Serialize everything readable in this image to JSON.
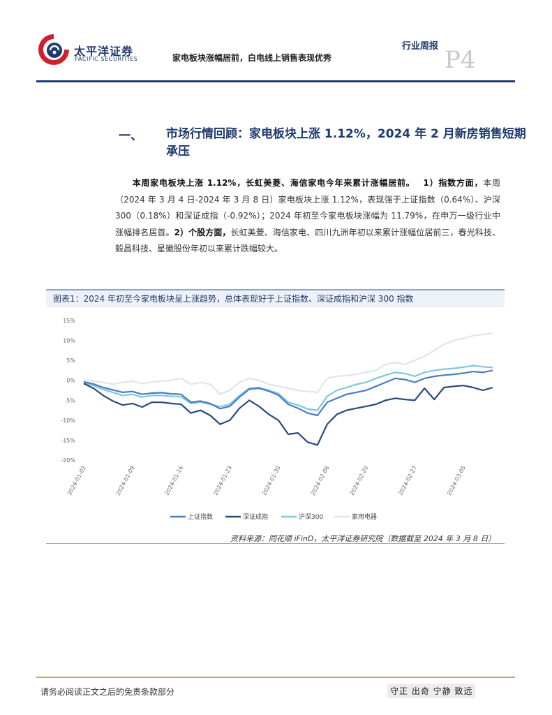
{
  "header": {
    "logo_cn": "太平洋证券",
    "logo_en": "PACIFIC SECURITIES",
    "subtitle": "家电板块涨幅居前，白电线上销售表现优秀",
    "report_type": "行业周报",
    "page_number": "P4"
  },
  "section": {
    "number": "一、",
    "title": "市场行情回顾：家电板块上涨 1.12%，2024 年 2 月新房销售短期承压"
  },
  "body": {
    "lead": "本周家电板块上涨 1.12%，长虹美菱、海信家电今年来累计涨幅居前。",
    "point1_label": "1）指数方面，",
    "point1_text": "本周（2024 年 3 月 4 日-2024 年 3 月 8 日）家电板块上涨 1.12%，表现强于上证指数（0.64%）、沪深 300（0.18%）和深证成指（-0.92%）；2024 年初至今家电板块涨幅为 11.79%，在申万一级行业中涨幅排名居首。",
    "point2_label": "2）个股方面，",
    "point2_text": "长虹美菱、海信家电、四川九洲年初以来累计涨幅位居前三，春光科技、毅昌科技、星徽股份年初以来累计跌幅较大。"
  },
  "figure": {
    "title": "图表1：2024 年初至今家电板块呈上涨趋势，总体表现好于上证指数、深证成指和沪深 300 指数",
    "source": "资料来源：同花顺 iFinD，太平洋证券研究院（数据截至 2024 年 3 月 8 日）"
  },
  "chart_data": {
    "type": "line",
    "title": "",
    "xlabel": "",
    "ylabel": "",
    "ylim": [
      -20,
      15
    ],
    "yticks": [
      "15%",
      "10%",
      "5%",
      "0%",
      "-5%",
      "-10%",
      "-15%",
      "-20%"
    ],
    "ytick_values": [
      15,
      10,
      5,
      0,
      -5,
      -10,
      -15,
      -20
    ],
    "xticks": [
      "2024-01-02",
      "2024-01-09",
      "2024-01-16",
      "2024-01-23",
      "2024-01-30",
      "2024-02-06",
      "2024-02-13",
      "2024-02-20",
      "2024-02-27",
      "2024-03-05"
    ],
    "grid": false,
    "legend": "bottom",
    "x": [
      "2024-01-02",
      "2024-01-03",
      "2024-01-04",
      "2024-01-05",
      "2024-01-08",
      "2024-01-09",
      "2024-01-10",
      "2024-01-11",
      "2024-01-12",
      "2024-01-15",
      "2024-01-16",
      "2024-01-17",
      "2024-01-18",
      "2024-01-19",
      "2024-01-22",
      "2024-01-23",
      "2024-01-24",
      "2024-01-25",
      "2024-01-26",
      "2024-01-29",
      "2024-01-30",
      "2024-01-31",
      "2024-02-01",
      "2024-02-02",
      "2024-02-05",
      "2024-02-06",
      "2024-02-07",
      "2024-02-08",
      "2024-02-19",
      "2024-02-20",
      "2024-02-21",
      "2024-02-22",
      "2024-02-23",
      "2024-02-26",
      "2024-02-27",
      "2024-02-28",
      "2024-02-29",
      "2024-03-01",
      "2024-03-04",
      "2024-03-05",
      "2024-03-06",
      "2024-03-07",
      "2024-03-08"
    ],
    "series": [
      {
        "name": "上证指数",
        "color": "#4a7cc4",
        "values": [
          -0.4,
          -0.9,
          -1.8,
          -2.4,
          -3.0,
          -2.8,
          -3.5,
          -3.2,
          -3.1,
          -3.4,
          -3.5,
          -5.5,
          -5.2,
          -5.8,
          -7.1,
          -6.5,
          -4.2,
          -2.2,
          -2.0,
          -2.7,
          -3.7,
          -6.0,
          -7.0,
          -8.2,
          -8.8,
          -5.5,
          -4.5,
          -3.5,
          -3.0,
          -2.5,
          -1.5,
          -0.5,
          0.5,
          0.2,
          -0.5,
          0.5,
          1.0,
          1.3,
          1.5,
          1.8,
          2.2,
          2.0,
          2.5
        ]
      },
      {
        "name": "深证成指",
        "color": "#274a7e",
        "values": [
          -0.8,
          -2.0,
          -3.8,
          -5.2,
          -6.2,
          -5.8,
          -6.7,
          -5.5,
          -5.5,
          -5.8,
          -6.0,
          -8.2,
          -7.5,
          -8.8,
          -11.0,
          -10.0,
          -7.0,
          -5.0,
          -6.5,
          -8.5,
          -10.0,
          -13.5,
          -13.2,
          -15.5,
          -16.2,
          -11.0,
          -8.5,
          -7.5,
          -7.0,
          -6.5,
          -6.0,
          -5.0,
          -4.5,
          -4.8,
          -5.0,
          -2.0,
          -4.8,
          -1.8,
          -1.5,
          -1.3,
          -1.8,
          -2.5,
          -1.8
        ]
      },
      {
        "name": "沪深300",
        "color": "#7fc7d9",
        "values": [
          -0.6,
          -1.3,
          -2.3,
          -3.0,
          -3.8,
          -3.5,
          -4.2,
          -3.8,
          -3.8,
          -4.0,
          -4.1,
          -5.8,
          -5.5,
          -6.0,
          -6.6,
          -6.0,
          -3.8,
          -2.0,
          -1.8,
          -2.5,
          -3.3,
          -5.5,
          -6.2,
          -7.2,
          -7.5,
          -4.0,
          -2.5,
          -1.8,
          -1.0,
          -0.5,
          0.5,
          1.3,
          2.0,
          1.7,
          1.0,
          2.0,
          2.5,
          2.8,
          3.0,
          3.3,
          3.7,
          3.4,
          3.2
        ]
      },
      {
        "name": "家用电器",
        "color": "#dce6f2",
        "values": [
          0.1,
          -0.2,
          -0.5,
          -1.0,
          -0.5,
          -0.2,
          -0.8,
          -0.4,
          -0.2,
          0.0,
          0.5,
          -1.0,
          -0.5,
          -1.0,
          -3.5,
          -2.5,
          -0.5,
          0.5,
          0.0,
          -1.0,
          -1.5,
          -2.0,
          -2.5,
          -2.8,
          -3.0,
          0.5,
          1.0,
          1.2,
          1.5,
          2.0,
          2.5,
          4.0,
          4.5,
          4.0,
          5.0,
          6.0,
          7.5,
          9.0,
          10.0,
          10.5,
          11.2,
          11.5,
          11.8
        ]
      }
    ]
  },
  "footer": {
    "disclaimer": "请务必阅读正文之后的免责条款部分",
    "motto": "守正 出奇 宁静 致远"
  },
  "colors": {
    "brand_navy": "#1f3a6e",
    "logo_red": "#d0202b",
    "rule_gold": "#b8a77a"
  }
}
